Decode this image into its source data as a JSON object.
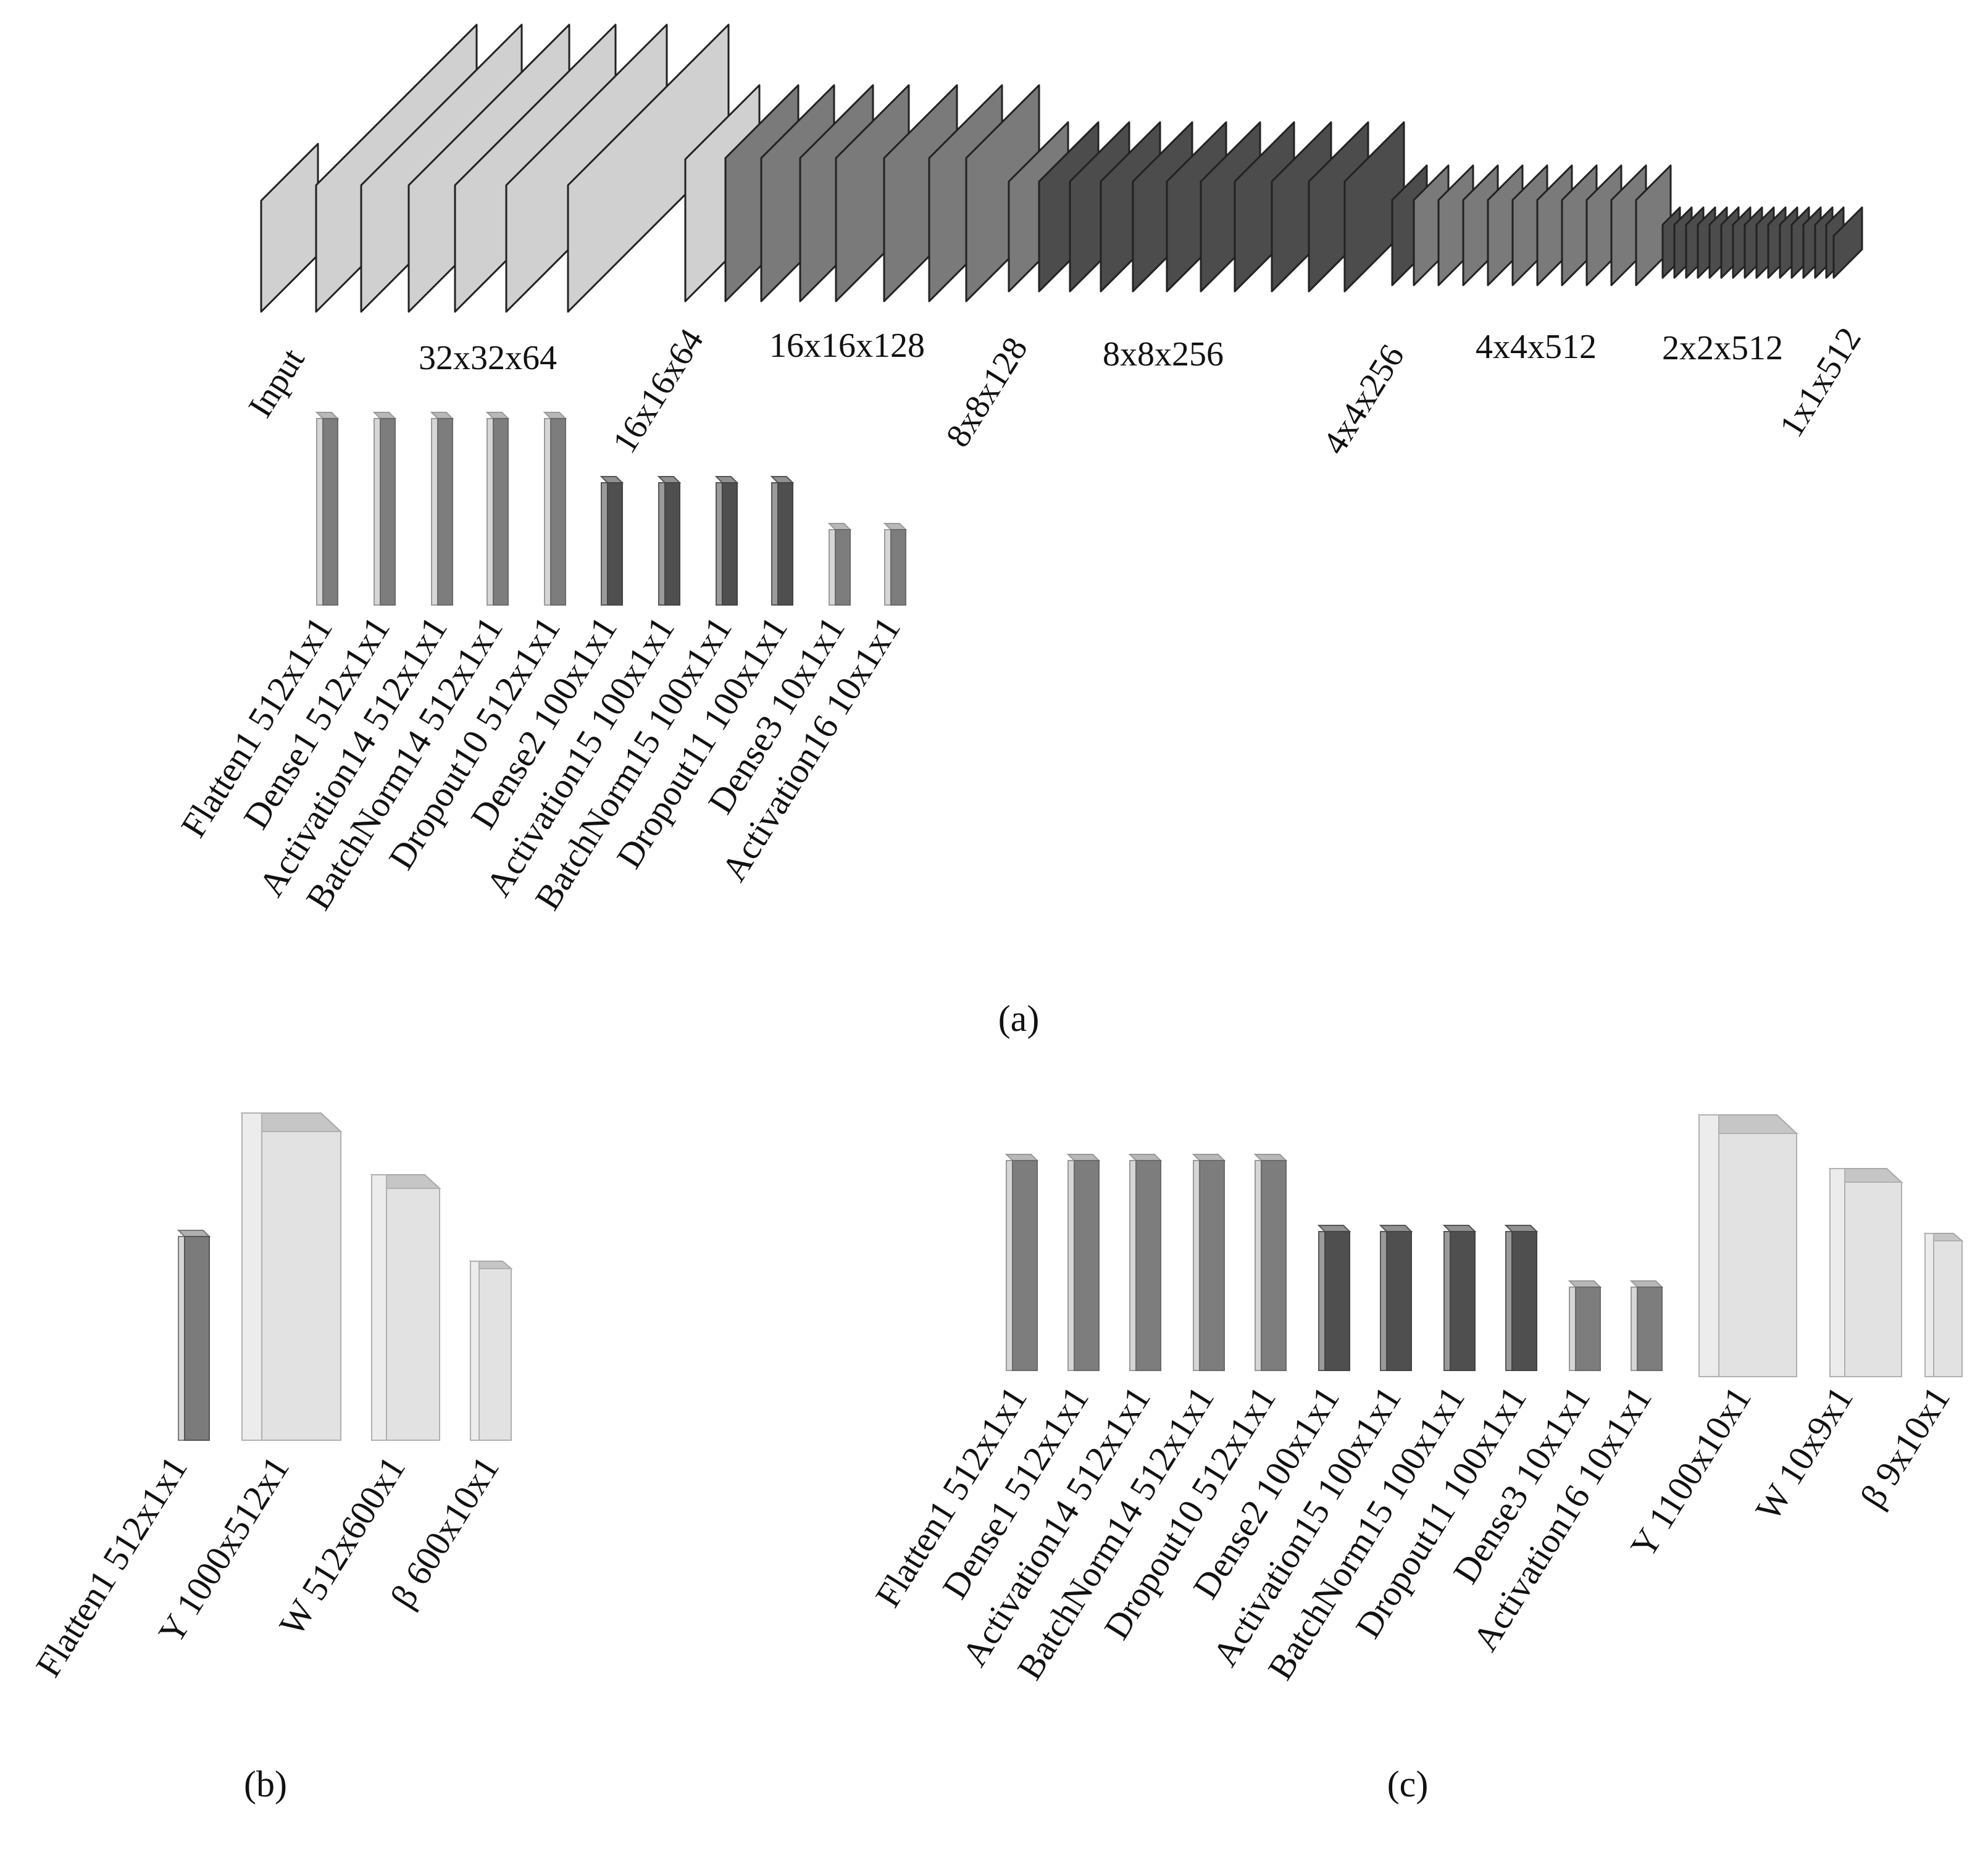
{
  "colors": {
    "conv_light": "#d0d0d0",
    "conv_mid": "#7a7a7a",
    "conv_dark": "#4c4c4c",
    "dense_mid": "#7d7d7d",
    "dense_dark": "#4f4f4f",
    "elm_light": "#e2e2e2"
  },
  "panel_a": {
    "caption": "(a)",
    "conv_labels": {
      "input": "Input",
      "l32": "32x32x64",
      "l16a": "16x16x64",
      "l16b": "16x16x128",
      "l8a": "8x8x128",
      "l8b": "8x8x256",
      "l4a": "4x4x256",
      "l4b": "4x4x512",
      "l2": "2x2x512",
      "l1": "1x1x512"
    },
    "dense_labels": [
      "Flatten1 512x1x1",
      "Dense1 512x1x1",
      "Activation14 512x1x1",
      "BatchNorm14 512x1x1",
      "Dropout10 512x1x1",
      "Dense2 100x1x1",
      "Activation15 100x1x1",
      "BatchNorm15 100x1x1",
      "Dropout11 100x1x1",
      "Dense3 10x1x1",
      "Activation16 10x1x1"
    ]
  },
  "panel_b": {
    "caption": "(b)",
    "labels": [
      "Flatten1 512x1x1",
      "Y 1000x512x1",
      "W 512x600x1",
      "β 600x10x1"
    ]
  },
  "panel_c": {
    "caption": "(c)",
    "labels": [
      "Flatten1 512x1x1",
      "Dense1 512x1x1",
      "Activation14 512x1x1",
      "BatchNorm14 512x1x1",
      "Dropout10 512x1x1",
      "Dense2 100x1x1",
      "Activation15 100x1x1",
      "BatchNorm15 100x1x1",
      "Dropout11 100x1x1",
      "Dense3 10x1x1",
      "Activation16 10x1x1",
      "Y 1100x10x1",
      "W 10x9x1",
      "β 9x10x1"
    ]
  }
}
